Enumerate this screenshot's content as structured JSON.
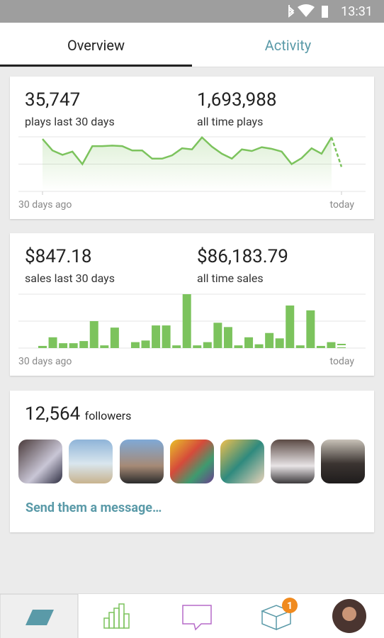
{
  "status_bar": {
    "time": "13:31"
  },
  "tabs": [
    "Overview",
    "Activity"
  ],
  "plays_card": {
    "stats": [
      {
        "value": "35,747",
        "label": "plays last 30 days"
      },
      {
        "value": "1,693,988",
        "label": "all time plays"
      }
    ],
    "chart_data": {
      "type": "line",
      "color": "#7cc35d",
      "dashed_last": true,
      "x_labels": [
        "30 days ago",
        "today"
      ],
      "values": [
        96,
        75,
        67,
        73,
        50,
        83,
        83,
        84,
        83,
        75,
        75,
        60,
        60,
        66,
        79,
        77,
        99,
        82,
        69,
        60,
        77,
        74,
        81,
        78,
        73,
        50,
        61,
        79,
        69,
        99,
        45
      ],
      "ylim": [
        0,
        100
      ],
      "yticks": [
        0,
        50,
        100
      ],
      "grid": true
    }
  },
  "sales_card": {
    "stats": [
      {
        "value": "$847.18",
        "label": "sales last 30 days"
      },
      {
        "value": "$86,183.79",
        "label": "all time sales"
      }
    ],
    "chart_data": {
      "type": "bar",
      "color": "#7cc35d",
      "dashed_last": true,
      "x_labels": [
        "30 days ago",
        "today"
      ],
      "values": [
        4,
        20,
        9,
        9,
        13,
        50,
        5,
        38,
        0,
        11,
        14,
        42,
        42,
        5,
        100,
        5,
        11,
        47,
        39,
        5,
        20,
        7,
        28,
        18,
        79,
        5,
        70,
        4,
        11,
        10
      ],
      "ylim": [
        0,
        100
      ],
      "yticks": [
        0,
        50,
        100
      ],
      "grid": true
    }
  },
  "followers_card": {
    "count": "12,564",
    "label": "followers",
    "action": "Send them a message…"
  },
  "nav": {
    "badge": "1"
  }
}
